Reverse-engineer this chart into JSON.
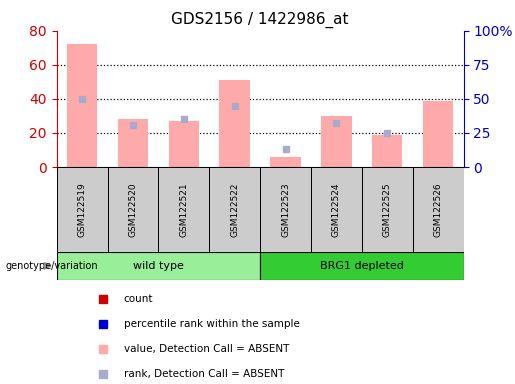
{
  "title": "GDS2156 / 1422986_at",
  "samples": [
    "GSM122519",
    "GSM122520",
    "GSM122521",
    "GSM122522",
    "GSM122523",
    "GSM122524",
    "GSM122525",
    "GSM122526"
  ],
  "pink_bars": [
    72,
    28,
    27,
    51,
    6,
    30,
    19,
    39
  ],
  "blue_squares_pct": [
    50,
    31,
    35,
    45,
    13,
    32,
    25,
    null
  ],
  "left_ylim": [
    0,
    80
  ],
  "right_ylim": [
    0,
    100
  ],
  "left_yticks": [
    0,
    20,
    40,
    60,
    80
  ],
  "right_yticks": [
    0,
    25,
    50,
    75,
    100
  ],
  "right_yticklabels": [
    "0",
    "25",
    "50",
    "75",
    "100%"
  ],
  "left_ycolor": "#cc0000",
  "right_ycolor": "#0000cc",
  "groups": [
    {
      "label": "wild type",
      "start": 0,
      "end": 4,
      "color": "#99ee99"
    },
    {
      "label": "BRG1 depleted",
      "start": 4,
      "end": 8,
      "color": "#33cc33"
    }
  ],
  "legend_colors": [
    "#cc0000",
    "#0000cc",
    "#ffaaaa",
    "#aaaacc"
  ],
  "legend_labels": [
    "count",
    "percentile rank within the sample",
    "value, Detection Call = ABSENT",
    "rank, Detection Call = ABSENT"
  ],
  "genotype_label": "genotype/variation",
  "sample_box_color": "#cccccc",
  "plot_bg_color": "#ffffff",
  "bar_color": "#ffaaaa",
  "square_color": "#aaaacc",
  "grid_dotted_color": "#000000",
  "title_fontsize": 11,
  "legend_fontsize": 7.5,
  "sample_fontsize": 6.5
}
